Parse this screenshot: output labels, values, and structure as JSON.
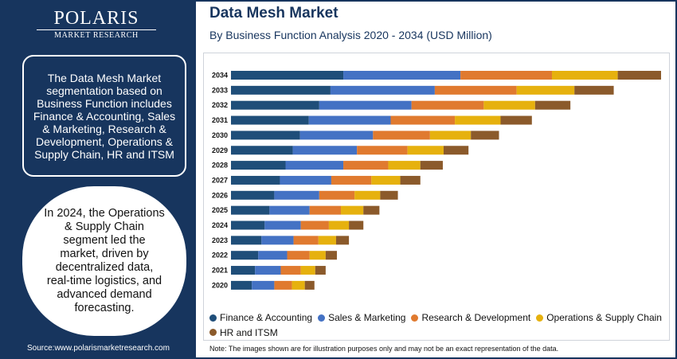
{
  "brand": {
    "name": "POLARIS",
    "sub": "MARKET RESEARCH"
  },
  "sidebar": {
    "box1_text": "The Data Mesh Market segmentation based on Business Function includes Finance & Accounting, Sales & Marketing, Research & Development, Operations & Supply Chain, HR and ITSM",
    "box2_text": "In 2024, the Operations & Supply Chain segment led the market, driven by decentralized data, real-time logistics, and advanced demand forecasting.",
    "source": "Source:www.polarismarketresearch.com"
  },
  "header": {
    "title": "Data Mesh Market",
    "subtitle": "By Business Function Analysis 2020 - 2034 (USD Million)"
  },
  "note": "Note: The images shown are for illustration purposes only and may not be an exact representation of the data.",
  "colors": {
    "navy": "#17355e",
    "finance": "#1f4e79",
    "sales": "#4472c4",
    "rnd": "#e07a2f",
    "ops": "#e6b10e",
    "hr": "#8b5a2b"
  },
  "chart_data": {
    "type": "bar",
    "orientation": "horizontal",
    "stacked": true,
    "categories": [
      "2034",
      "2033",
      "2032",
      "2031",
      "2030",
      "2029",
      "2028",
      "2027",
      "2026",
      "2025",
      "2024",
      "2023",
      "2022",
      "2021",
      "2020"
    ],
    "series": [
      {
        "name": "Finance & Accounting",
        "color": "#1f4e79",
        "values": [
          140,
          124,
          110,
          97,
          86,
          77,
          68,
          61,
          54,
          48,
          42,
          38,
          34,
          30,
          26
        ]
      },
      {
        "name": "Sales & Marketing",
        "color": "#4472c4",
        "values": [
          146,
          130,
          115,
          102,
          91,
          80,
          72,
          64,
          56,
          50,
          45,
          40,
          36,
          32,
          28
        ]
      },
      {
        "name": "Research & Development",
        "color": "#e07a2f",
        "values": [
          114,
          102,
          90,
          80,
          71,
          63,
          56,
          50,
          44,
          39,
          35,
          31,
          28,
          25,
          22
        ]
      },
      {
        "name": "Operations & Supply Chain",
        "color": "#e6b10e",
        "values": [
          82,
          72,
          64,
          57,
          51,
          45,
          40,
          36,
          32,
          28,
          25,
          22,
          20,
          18,
          16
        ]
      },
      {
        "name": "HR and ITSM",
        "color": "#8b5a2b",
        "values": [
          54,
          49,
          44,
          39,
          35,
          31,
          28,
          25,
          22,
          20,
          18,
          16,
          14,
          13,
          12
        ]
      }
    ],
    "legend_position": "bottom",
    "grid": false
  }
}
